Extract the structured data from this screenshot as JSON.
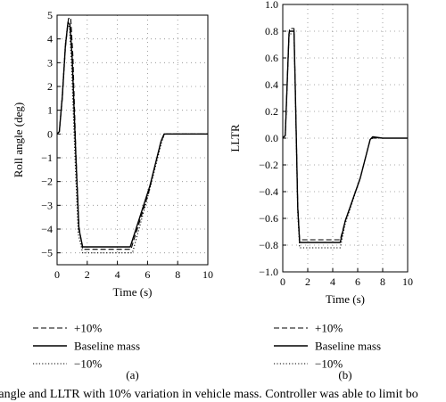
{
  "chart_data": [
    {
      "type": "line",
      "panel_label": "(a)",
      "xlabel": "Time (s)",
      "ylabel": "Roll angle (deg)",
      "xlim": [
        0,
        10
      ],
      "ylim": [
        -5.5,
        5
      ],
      "xticks": [
        0,
        2,
        4,
        6,
        8,
        10
      ],
      "yticks": [
        -5,
        -4,
        -3,
        -2,
        -1,
        0,
        1,
        2,
        3,
        4,
        5
      ],
      "ytick_labels": [
        "−5",
        "−4",
        "−3",
        "−2",
        "−1",
        "0",
        "1",
        "2",
        "3",
        "4",
        "5"
      ],
      "grid": true,
      "legend_position": "below",
      "series": [
        {
          "name": "+10%",
          "style": "dashed",
          "x": [
            0,
            0.15,
            0.35,
            0.55,
            0.75,
            0.9,
            1.05,
            1.25,
            1.45,
            1.7,
            3.0,
            4.4,
            4.9,
            6.1,
            6.85,
            7.1,
            8.0,
            10
          ],
          "y": [
            0,
            0.1,
            1.5,
            3.6,
            4.85,
            4.9,
            3.3,
            -0.8,
            -3.9,
            -4.85,
            -4.85,
            -4.85,
            -4.85,
            -2.4,
            -0.4,
            0,
            0,
            0
          ]
        },
        {
          "name": "Baseline mass",
          "style": "solid",
          "x": [
            0,
            0.15,
            0.35,
            0.55,
            0.72,
            0.85,
            1.0,
            1.25,
            1.45,
            1.7,
            3.0,
            4.5,
            4.85,
            6.15,
            6.9,
            7.1,
            8.0,
            10
          ],
          "y": [
            0,
            0.1,
            1.6,
            3.7,
            4.7,
            4.6,
            3.2,
            -1.0,
            -4.0,
            -4.75,
            -4.75,
            -4.75,
            -4.75,
            -2.2,
            -0.3,
            0,
            0,
            0
          ]
        },
        {
          "name": "−10%",
          "style": "dotted",
          "x": [
            0,
            0.15,
            0.35,
            0.55,
            0.7,
            0.82,
            0.95,
            1.2,
            1.4,
            1.7,
            3.0,
            4.7,
            5.0,
            6.2,
            6.95,
            7.15,
            8.0,
            10
          ],
          "y": [
            0,
            0.1,
            1.7,
            3.8,
            4.6,
            4.5,
            3.0,
            -1.2,
            -4.2,
            -5.0,
            -5.0,
            -5.0,
            -5.0,
            -2.2,
            -0.3,
            0,
            0,
            0
          ]
        }
      ],
      "legend": [
        "+10%",
        "Baseline mass",
        "−10%"
      ]
    },
    {
      "type": "line",
      "panel_label": "(b)",
      "xlabel": "Time (s)",
      "ylabel": "LLTR",
      "xlim": [
        0,
        10
      ],
      "ylim": [
        -1.0,
        1.0
      ],
      "xticks": [
        0,
        2,
        4,
        6,
        8,
        10
      ],
      "yticks": [
        -1.0,
        -0.8,
        -0.6,
        -0.4,
        -0.2,
        0.0,
        0.2,
        0.4,
        0.6,
        0.8,
        1.0
      ],
      "ytick_labels": [
        "−1.0",
        "−0.8",
        "−0.6",
        "−0.4",
        "−0.2",
        "0.0",
        "0.2",
        "0.4",
        "0.6",
        "0.8",
        "1.0"
      ],
      "grid": true,
      "legend_position": "below",
      "series": [
        {
          "name": "+10%",
          "style": "dashed",
          "x": [
            0,
            0.2,
            0.35,
            0.5,
            0.55,
            0.9,
            1.0,
            1.2,
            1.35,
            1.6,
            4.6,
            5.0,
            6.2,
            7.0,
            7.2,
            8.0,
            10
          ],
          "y": [
            0,
            0.02,
            0.4,
            0.78,
            0.82,
            0.82,
            0.4,
            -0.5,
            -0.76,
            -0.76,
            -0.76,
            -0.62,
            -0.3,
            -0.01,
            0.0,
            0.0,
            0.0
          ]
        },
        {
          "name": "Baseline mass",
          "style": "solid",
          "x": [
            0,
            0.2,
            0.35,
            0.5,
            0.55,
            0.9,
            1.0,
            1.2,
            1.35,
            1.6,
            4.6,
            5.0,
            6.2,
            7.0,
            7.2,
            8.0,
            10
          ],
          "y": [
            0,
            0.02,
            0.4,
            0.78,
            0.8,
            0.8,
            0.38,
            -0.52,
            -0.78,
            -0.78,
            -0.78,
            -0.62,
            -0.3,
            -0.01,
            0.01,
            0.0,
            0.0
          ]
        },
        {
          "name": "−10%",
          "style": "dotted",
          "x": [
            0,
            0.2,
            0.35,
            0.5,
            0.55,
            0.9,
            1.0,
            1.2,
            1.35,
            1.6,
            4.6,
            5.0,
            6.2,
            7.0,
            7.2,
            8.0,
            10
          ],
          "y": [
            0,
            0.02,
            0.4,
            0.76,
            0.78,
            0.78,
            0.36,
            -0.56,
            -0.82,
            -0.82,
            -0.82,
            -0.64,
            -0.3,
            -0.01,
            0.0,
            0.0,
            0.0
          ]
        }
      ],
      "legend": [
        "+10%",
        "Baseline mass",
        "−10%"
      ]
    }
  ],
  "caption": "l angle and LLTR with 10% variation in vehicle mass. Controller was able to limit bo"
}
